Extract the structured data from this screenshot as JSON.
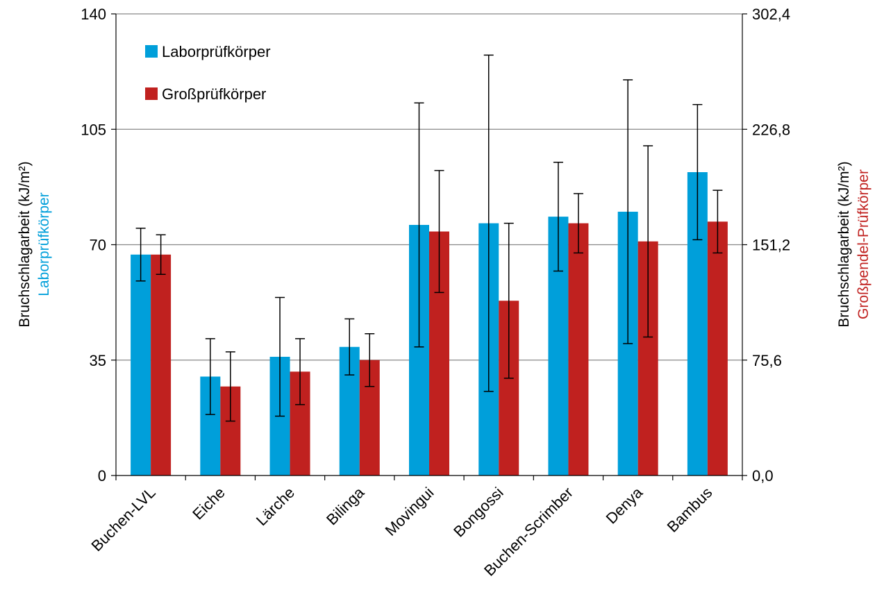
{
  "chart_data": {
    "type": "bar",
    "categories": [
      "Buchen-LVL",
      "Eiche",
      "Lärche",
      "Bilinga",
      "Movingui",
      "Bongossi",
      "Buchen-Scrimber",
      "Denya",
      "Bambus"
    ],
    "series": [
      {
        "name": "Laborprüfkörper",
        "axis": "left",
        "color": "#009fda",
        "values": [
          67,
          30,
          36,
          39,
          76,
          76.5,
          78.5,
          80,
          92
        ],
        "error": [
          8,
          11.5,
          18,
          8.5,
          37,
          51,
          16.5,
          40,
          20.5
        ]
      },
      {
        "name": "Großprüfkörper",
        "axis": "left",
        "color": "#c0211f",
        "values": [
          67,
          27,
          31.5,
          35,
          74,
          53,
          76.5,
          71,
          77
        ],
        "error": [
          6,
          10.5,
          10,
          8,
          18.5,
          23.5,
          9,
          29,
          9.5
        ]
      }
    ],
    "left_axis": {
      "label_main": "Bruchschlagarbeit (kJ/m²)",
      "label_sub": "Laborprüfkörper",
      "label_sub_color": "#009fda",
      "ticks": [
        "0",
        "35",
        "70",
        "105",
        "140"
      ],
      "ylim": [
        0,
        140
      ]
    },
    "right_axis": {
      "label_main": "Bruchschlagarbeit (kJ/m²)",
      "label_sub": "Großpendel-Prüfkörper",
      "label_sub_color": "#c0211f",
      "ticks": [
        "0,0",
        "75,6",
        "151,2",
        "226,8",
        "302,4"
      ],
      "ylim": [
        0,
        302.4
      ]
    },
    "grid": true,
    "legend": {
      "position": "top-left",
      "labels": [
        "Laborprüfkörper",
        "Großprüfkörper"
      ]
    }
  }
}
